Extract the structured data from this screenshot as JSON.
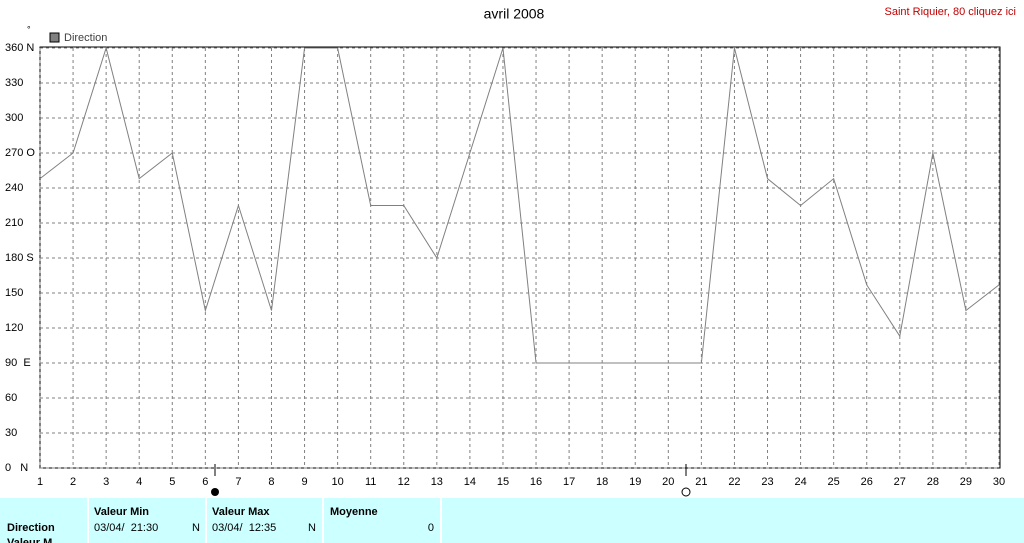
{
  "chart_data": {
    "type": "line",
    "title": "avril 2008",
    "link": "Saint Riquier, 80 cliquez ici",
    "unit": "°",
    "x": [
      1,
      2,
      3,
      4,
      5,
      6,
      7,
      8,
      9,
      10,
      11,
      12,
      13,
      14,
      15,
      16,
      17,
      18,
      19,
      20,
      21,
      22,
      23,
      24,
      25,
      26,
      27,
      28,
      29,
      30
    ],
    "series": [
      {
        "name": "Direction",
        "color": "#808080",
        "values": [
          248,
          270,
          360,
          248,
          270,
          135,
          225,
          135,
          360,
          360,
          225,
          225,
          180,
          270,
          360,
          90,
          90,
          90,
          90,
          90,
          90,
          360,
          248,
          225,
          248,
          157,
          113,
          270,
          135,
          157
        ]
      }
    ],
    "xlim": [
      1,
      30
    ],
    "xticks": [
      1,
      2,
      3,
      4,
      5,
      6,
      7,
      8,
      9,
      10,
      11,
      12,
      13,
      14,
      15,
      16,
      17,
      18,
      19,
      20,
      21,
      22,
      23,
      24,
      25,
      26,
      27,
      28,
      29,
      30
    ],
    "ylim": [
      0,
      360
    ],
    "yticks": [
      {
        "value": 0,
        "label": "0   N"
      },
      30,
      60,
      {
        "value": 90,
        "label": "90  E"
      },
      120,
      150,
      {
        "value": 180,
        "label": "180 S"
      },
      210,
      240,
      {
        "value": 270,
        "label": "270 O"
      },
      300,
      330,
      {
        "value": 360,
        "label": "360 N"
      }
    ],
    "grid": true
  },
  "table": {
    "headers": [
      "Valeur Min",
      "Valeur Max",
      "Moyenne"
    ],
    "rows": [
      [
        "Direction",
        "03/04/  21:30",
        "N",
        "03/04/  12:35",
        "N",
        "0"
      ],
      [
        "Valeur M"
      ]
    ]
  }
}
